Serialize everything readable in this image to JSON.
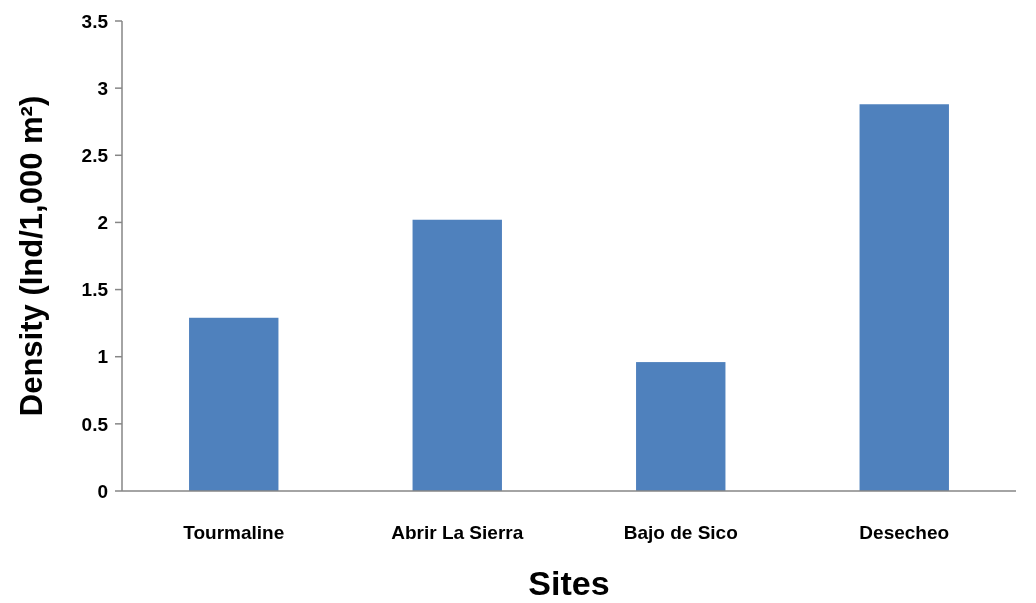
{
  "chart_data": {
    "type": "bar",
    "xlabel": "Sites",
    "ylabel": "Density (Ind/1,000 m²)",
    "categories": [
      "Tourmaline",
      "Abrir La Sierra",
      "Bajo de Sico",
      "Desecheo"
    ],
    "values": [
      1.29,
      2.02,
      0.96,
      2.88
    ],
    "color": "#4f81bd",
    "ylim": [
      0,
      3.5
    ],
    "yticks": [
      0,
      0.5,
      1,
      1.5,
      2,
      2.5,
      3,
      3.5
    ],
    "grid": false
  }
}
